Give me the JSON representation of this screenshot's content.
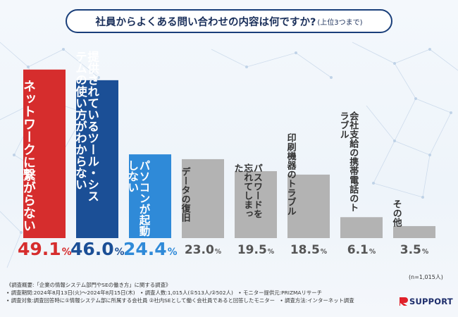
{
  "header": {
    "title": "社員からよくある問い合わせの内容は何ですか?",
    "subtitle": "(上位3つまで)"
  },
  "chart_data": {
    "type": "bar",
    "title": "社員からよくある問い合わせの内容は何ですか?(上位3つまで)",
    "categories": [
      "ネットワークに繋がらない",
      "提供されているツール・システムの使い方がわからない",
      "パソコンが起動しない",
      "データの復旧",
      "パスワードを忘れてしまった",
      "印刷機器のトラブル",
      "会社支給の携帯電話のトラブル",
      "その他"
    ],
    "values": [
      49.1,
      46.0,
      24.4,
      23.0,
      19.5,
      18.5,
      6.1,
      3.5
    ],
    "value_labels": [
      "49.1",
      "46.0",
      "24.4",
      "23.0",
      "19.5",
      "18.5",
      "6.1",
      "3.5"
    ],
    "unit": "%",
    "ylim": [
      0,
      55
    ],
    "colors": [
      "#d62d2d",
      "#1b4f96",
      "#2f8ad8",
      "#b3b3b3",
      "#b3b3b3",
      "#b3b3b3",
      "#b3b3b3",
      "#b3b3b3"
    ],
    "label_colors": [
      "#d62d2d",
      "#1b4f96",
      "#2f8ad8",
      "#555555",
      "#555555",
      "#555555",
      "#555555",
      "#555555"
    ],
    "grid": false,
    "legend": "none",
    "n": "(n=1,015人)"
  },
  "notes": [
    "《調査概要:「企業の情報システム部門やSEの働き方」に関する調査》",
    "• 調査期間:2024年8月13日(火)〜2024年8月15日(木)　• 調査人数:1,015人(①513人/②502人)　• モニター提供元:PRIZMAリサーチ",
    "• 調査対象:調査回答時に①情報システム部に所属する会社員 ②社内SEとして働く会社員であると回答したモニター　• 調査方法:インターネット調査"
  ],
  "logo": {
    "text": "SUPPORT",
    "color": "#1d2d6b",
    "accent": "#e0202a"
  },
  "icons": {
    "logo_mark": "r-logo-icon"
  }
}
